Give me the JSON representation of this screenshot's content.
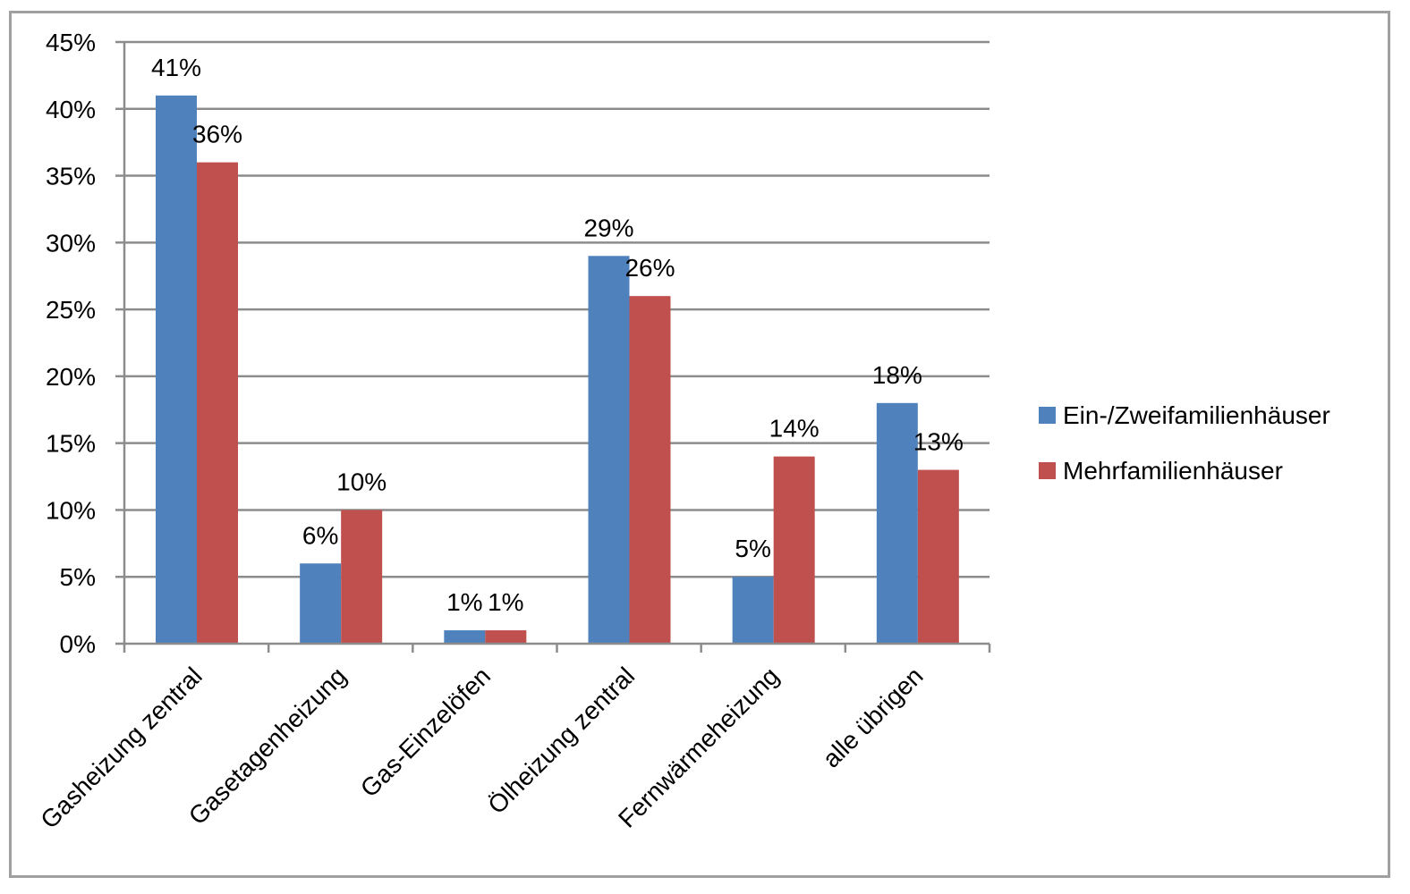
{
  "chart_data": {
    "type": "bar",
    "categories": [
      "Gasheizung zentral",
      "Gasetagenheizung",
      "Gas-Einzelöfen",
      "Ölheizung zentral",
      "Fernwärmeheizung",
      "alle übrigen"
    ],
    "series": [
      {
        "name": "Ein-/Zweifamilienhäuser",
        "values": [
          41,
          6,
          1,
          29,
          5,
          18
        ],
        "labels": [
          "41%",
          "6%",
          "1%",
          "29%",
          "5%",
          "18%"
        ],
        "color": "#4F81BD"
      },
      {
        "name": "Mehrfamilienhäuser",
        "values": [
          36,
          10,
          1,
          26,
          14,
          13
        ],
        "labels": [
          "36%",
          "10%",
          "1%",
          "26%",
          "14%",
          "13%"
        ],
        "color": "#C0504D"
      }
    ],
    "ylim": [
      0,
      45
    ],
    "yticks": [
      0,
      5,
      10,
      15,
      20,
      25,
      30,
      35,
      40,
      45
    ],
    "ytick_labels": [
      "0%",
      "5%",
      "10%",
      "15%",
      "20%",
      "25%",
      "30%",
      "35%",
      "40%",
      "45%"
    ],
    "grid": true,
    "legend": "right",
    "title": "",
    "xlabel": "",
    "ylabel": ""
  }
}
